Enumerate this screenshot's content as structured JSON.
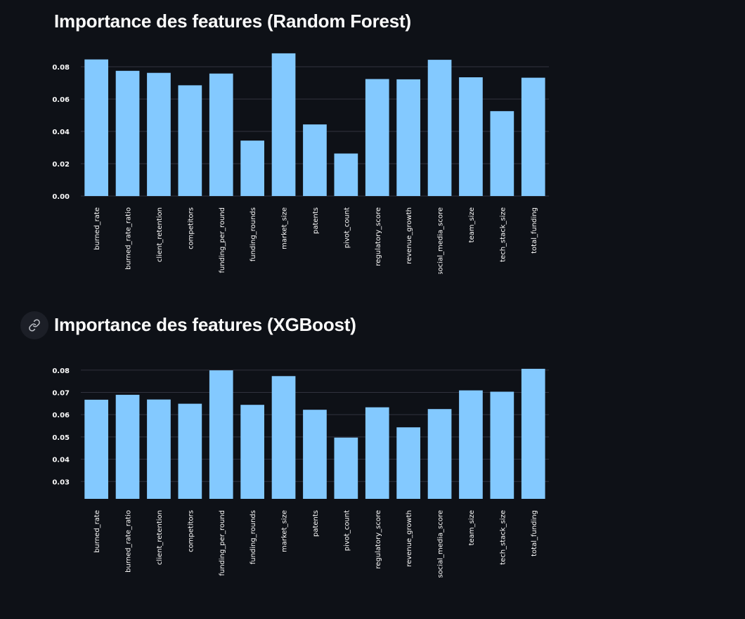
{
  "sections": [
    {
      "title": "Importance des features (Random Forest)"
    },
    {
      "title": "Importance des features (XGBoost)",
      "anchor_icon": "link-icon"
    }
  ],
  "colors": {
    "background": "#0e1117",
    "bar": "#83c9ff",
    "grid": "#31333f",
    "text": "#fafafa"
  },
  "chart_data": [
    {
      "type": "bar",
      "title": "Importance des features (Random Forest)",
      "xlabel": "",
      "ylabel": "",
      "categories": [
        "burned_rate",
        "burned_rate_ratio",
        "client_retention",
        "competitors",
        "funding_per_round",
        "funding_rounds",
        "market_size",
        "patents",
        "pivot_count",
        "regulatory_score",
        "revenue_growth",
        "social_media_score",
        "team_size",
        "tech_stack_size",
        "total_funding"
      ],
      "values": [
        0.0845,
        0.0775,
        0.0762,
        0.0685,
        0.0758,
        0.0343,
        0.0883,
        0.0443,
        0.0263,
        0.0724,
        0.0722,
        0.0843,
        0.0735,
        0.0525,
        0.0732
      ],
      "ylim": [
        0,
        0.09
      ],
      "yticks": [
        0.0,
        0.02,
        0.04,
        0.06,
        0.08
      ],
      "ytick_labels": [
        "0.00",
        "0.02",
        "0.04",
        "0.06",
        "0.08"
      ],
      "grid": true
    },
    {
      "type": "bar",
      "title": "Importance des features (XGBoost)",
      "xlabel": "",
      "ylabel": "",
      "categories": [
        "burned_rate",
        "burned_rate_ratio",
        "client_retention",
        "competitors",
        "funding_per_round",
        "funding_rounds",
        "market_size",
        "patents",
        "pivot_count",
        "regulatory_score",
        "revenue_growth",
        "social_media_score",
        "team_size",
        "tech_stack_size",
        "total_funding"
      ],
      "values": [
        0.0667,
        0.0689,
        0.0668,
        0.0649,
        0.0799,
        0.0644,
        0.0773,
        0.0622,
        0.0497,
        0.0633,
        0.0543,
        0.0625,
        0.0709,
        0.0703,
        0.0806
      ],
      "ylim": [
        0.0222,
        0.0815
      ],
      "yticks": [
        0.03,
        0.04,
        0.05,
        0.06,
        0.07,
        0.08
      ],
      "ytick_labels": [
        "0.03",
        "0.04",
        "0.05",
        "0.06",
        "0.07",
        "0.08"
      ],
      "grid": true
    }
  ]
}
